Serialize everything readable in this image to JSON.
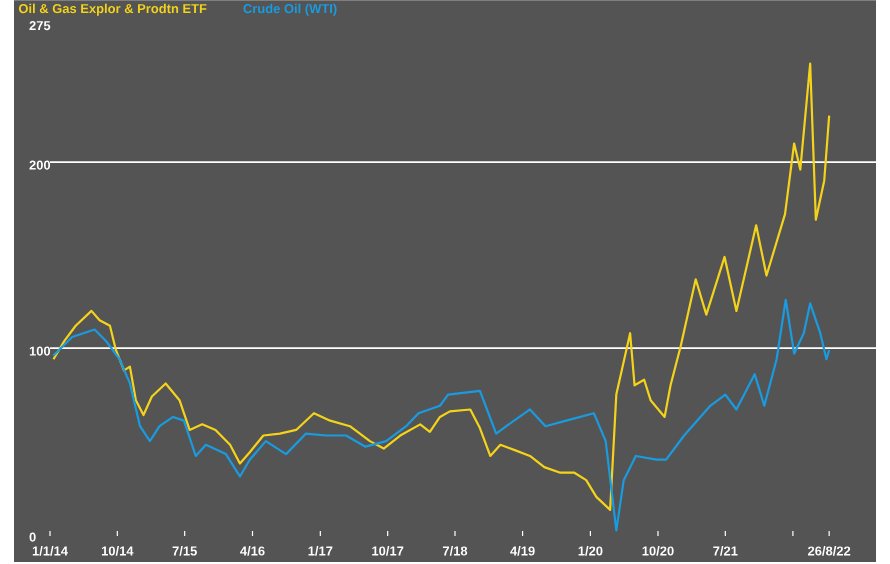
{
  "chart_data": {
    "type": "line",
    "legend": "top left",
    "grid": false,
    "ylim": [
      -15,
      287
    ],
    "yticks": [
      0,
      100,
      200,
      275
    ],
    "xlim": [
      "2013-08-08",
      "2023-03-04"
    ],
    "xticks": [
      {
        "value": "2014-01-01",
        "label": "1/1/14"
      },
      {
        "value": "2014-10-01",
        "label": "10/14"
      },
      {
        "value": "2015-07-01",
        "label": "7/15"
      },
      {
        "value": "2016-04-01",
        "label": "4/16"
      },
      {
        "value": "2017-01-01",
        "label": "1/17"
      },
      {
        "value": "2017-10-01",
        "label": "10/17"
      },
      {
        "value": "2018-07-01",
        "label": "7/18"
      },
      {
        "value": "2019-04-01",
        "label": "4/19"
      },
      {
        "value": "2020-01-01",
        "label": "1/20"
      },
      {
        "value": "2020-10-01",
        "label": "10/20"
      },
      {
        "value": "2021-07-01",
        "label": "7/21"
      },
      {
        "value": "2022-04-01",
        "label": null
      },
      {
        "value": "2022-08-26",
        "label": "26/8/22"
      }
    ],
    "ref_lines": [
      {
        "axis": "y",
        "value": 100,
        "color": "#ffffff"
      },
      {
        "axis": "y",
        "value": 200,
        "color": "#ffffff"
      }
    ],
    "series": [
      {
        "name": "Oil & Gas Explor & Prodtn ETF",
        "color": "#f5d31a",
        "x": [
          "2014-01-15",
          "2014-03-01",
          "2014-04-15",
          "2014-06-18",
          "2014-07-21",
          "2014-09-01",
          "2014-09-25",
          "2014-10-28",
          "2014-11-21",
          "2014-12-15",
          "2015-01-15",
          "2015-02-18",
          "2015-04-15",
          "2015-06-10",
          "2015-07-21",
          "2015-09-10",
          "2015-11-03",
          "2016-01-01",
          "2016-02-10",
          "2016-03-21",
          "2016-05-15",
          "2016-07-21",
          "2016-09-25",
          "2016-12-06",
          "2017-02-10",
          "2017-05-01",
          "2017-07-21",
          "2017-09-15",
          "2017-11-21",
          "2018-02-10",
          "2018-03-21",
          "2018-05-01",
          "2018-06-10",
          "2018-09-01",
          "2018-10-10",
          "2018-11-21",
          "2019-01-01",
          "2019-03-03",
          "2019-05-01",
          "2019-06-28",
          "2019-09-01",
          "2019-10-28",
          "2019-12-15",
          "2020-01-25",
          "2020-03-21",
          "2020-04-15",
          "2020-06-10",
          "2020-06-28",
          "2020-08-06",
          "2020-09-01",
          "2020-10-28",
          "2020-11-21",
          "2021-01-01",
          "2021-03-03",
          "2021-04-15",
          "2021-06-28",
          "2021-08-15",
          "2021-11-03",
          "2021-12-15",
          "2022-02-28",
          "2022-04-06",
          "2022-05-01",
          "2022-06-10",
          "2022-07-03",
          "2022-08-06",
          "2022-08-26"
        ],
        "values": [
          94,
          104,
          112,
          120,
          115,
          112,
          99,
          88,
          90,
          72,
          64,
          74,
          81,
          72,
          56,
          59,
          56,
          48,
          38,
          44,
          53,
          54,
          56,
          65,
          61,
          58,
          50,
          46,
          53,
          59,
          55,
          63,
          66,
          67,
          57,
          42,
          48,
          45,
          42,
          36,
          33,
          33,
          29,
          20,
          13,
          75,
          108,
          80,
          83,
          72,
          63,
          80,
          101,
          137,
          118,
          149,
          120,
          166,
          139,
          172,
          210,
          196,
          253,
          169,
          190,
          225
        ]
      },
      {
        "name": "Crude Oil (WTI)",
        "color": "#1a9be0",
        "x": [
          "2014-01-15",
          "2014-04-01",
          "2014-07-01",
          "2014-08-15",
          "2014-10-10",
          "2014-11-21",
          "2015-01-01",
          "2015-02-10",
          "2015-03-21",
          "2015-05-15",
          "2015-06-28",
          "2015-08-15",
          "2015-09-25",
          "2015-12-15",
          "2016-02-10",
          "2016-03-21",
          "2016-05-25",
          "2016-08-15",
          "2016-11-03",
          "2017-01-25",
          "2017-04-15",
          "2017-07-03",
          "2017-09-25",
          "2017-12-15",
          "2018-02-03",
          "2018-05-01",
          "2018-06-03",
          "2018-10-10",
          "2018-12-15",
          "2019-01-25",
          "2019-05-01",
          "2019-07-03",
          "2019-09-25",
          "2020-01-15",
          "2020-03-03",
          "2020-04-15",
          "2020-05-15",
          "2020-07-03",
          "2020-09-25",
          "2020-11-03",
          "2021-01-15",
          "2021-05-01",
          "2021-07-01",
          "2021-08-15",
          "2021-10-28",
          "2021-12-06",
          "2022-01-25",
          "2022-03-03",
          "2022-04-06",
          "2022-05-15",
          "2022-06-10",
          "2022-07-21",
          "2022-08-15",
          "2022-08-26"
        ],
        "values": [
          96,
          106,
          110,
          104,
          94,
          81,
          58,
          50,
          58,
          63,
          61,
          42,
          48,
          43,
          31,
          40,
          50,
          43,
          54,
          53,
          53,
          47,
          50,
          58,
          65,
          69,
          75,
          77,
          54,
          58,
          67,
          58,
          61,
          65,
          50,
          2,
          29,
          42,
          40,
          40,
          53,
          69,
          75,
          67,
          86,
          69,
          94,
          126,
          97,
          108,
          124,
          108,
          94,
          99
        ]
      }
    ]
  }
}
